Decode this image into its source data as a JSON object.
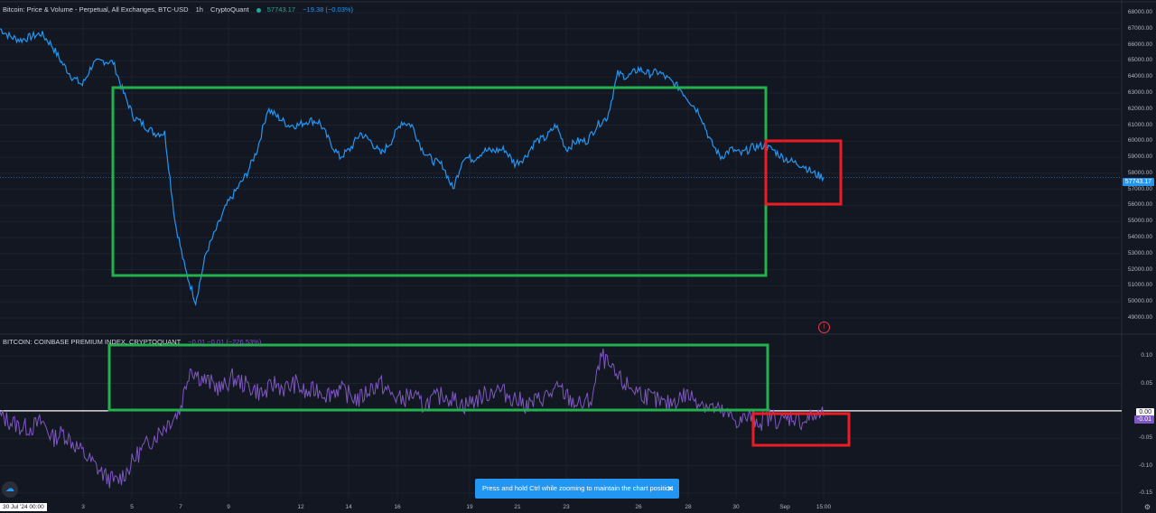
{
  "legend_top": {
    "name": "Bitcoin: Price & Volume - Perpetual, All Exchanges, BTC-USD",
    "interval": "1h",
    "source": "CryptoQuant",
    "price": "57743.17",
    "change": "−19.38 (−0.03%)"
  },
  "legend_bottom": {
    "name": "BITCOIN: COINBASE PREMIUM INDEX, CRYPTOQUANT",
    "values": "−0.01  −0.01 (−226.53%)"
  },
  "colors": {
    "background": "#131722",
    "price_line": "#2196f3",
    "premium_line": "#7e57c2",
    "highlight_green": "#22b14c",
    "highlight_red": "#ed1c24",
    "zero_line": "#ffffff"
  },
  "price_tag": "57743.17",
  "premium_tag_zero": "0.00",
  "premium_tag_current": "-0.01",
  "toast": {
    "message": "Press and hold Ctrl while zooming to maintain the chart position",
    "close_icon": "close-icon"
  },
  "date_chip": "30 Jul '24   00:00",
  "x_ticks": [
    "3",
    "5",
    "7",
    "9",
    "12",
    "14",
    "16",
    "19",
    "21",
    "23",
    "26",
    "28",
    "30",
    "Sep",
    "15:00"
  ],
  "chart_data": [
    {
      "type": "line",
      "title": "Bitcoin: Price & Volume - Perpetual, All Exchanges, BTC-USD",
      "series": [
        {
          "name": "Price",
          "values": [
            67000,
            66500,
            66300,
            66500,
            66700,
            66000,
            64900,
            64000,
            63500,
            64800,
            65000,
            64900,
            63000,
            61500,
            61000,
            60500,
            60500,
            55000,
            52000,
            50000,
            53000,
            54500,
            56000,
            57000,
            58000,
            59500,
            62000,
            61500,
            61000,
            61000,
            61300,
            61200,
            60000,
            59000,
            59500,
            60500,
            60000,
            59200,
            60000,
            61200,
            61000,
            59500,
            58800,
            58500,
            57000,
            59000,
            58900,
            59400,
            59400,
            59500,
            58600,
            59000,
            60000,
            60200,
            61000,
            59500,
            60000,
            60000,
            61000,
            61500,
            64200,
            64000,
            64500,
            64200,
            64300,
            63800,
            63300,
            62500,
            61700,
            60000,
            59000,
            59500,
            59200,
            59600,
            59700,
            59500,
            59000,
            58700,
            58500,
            58000,
            57743
          ]
        }
      ],
      "y_ticks": [
        "68000.00",
        "67000.00",
        "66000.00",
        "65000.00",
        "64000.00",
        "63000.00",
        "62000.00",
        "61000.00",
        "60000.00",
        "59000.00",
        "58000.00",
        "57000.00",
        "56000.00",
        "55000.00",
        "54000.00",
        "53000.00",
        "52000.00",
        "51000.00",
        "50000.00",
        "49000.00"
      ],
      "ylim": [
        49000,
        68000
      ]
    },
    {
      "type": "line",
      "title": "BITCOIN: COINBASE PREMIUM INDEX, CRYPTOQUANT",
      "series": [
        {
          "name": "Coinbase Premium Index",
          "values": [
            -0.01,
            -0.02,
            -0.03,
            -0.03,
            -0.02,
            -0.05,
            -0.04,
            -0.06,
            -0.08,
            -0.1,
            -0.12,
            -0.13,
            -0.11,
            -0.08,
            -0.06,
            -0.04,
            -0.02,
            0.0,
            0.08,
            0.06,
            0.05,
            0.04,
            0.06,
            0.05,
            0.04,
            0.03,
            0.05,
            0.04,
            0.05,
            0.03,
            0.04,
            0.03,
            0.04,
            0.03,
            0.02,
            0.04,
            0.05,
            0.03,
            0.02,
            0.03,
            0.01,
            0.02,
            0.03,
            0.02,
            0.01,
            0.02,
            0.03,
            0.04,
            0.03,
            0.02,
            0.01,
            0.02,
            0.03,
            0.04,
            0.02,
            0.01,
            0.02,
            0.1,
            0.07,
            0.05,
            0.04,
            0.03,
            0.02,
            0.01,
            0.02,
            0.03,
            0.02,
            0.01,
            0.0,
            -0.01,
            -0.02,
            -0.01,
            -0.02,
            -0.01,
            -0.02,
            -0.01,
            -0.02,
            -0.01,
            -0.01
          ]
        }
      ],
      "y_ticks": [
        "0.10",
        "0.05",
        "-0.05",
        "-0.10",
        "-0.15"
      ],
      "ylim": [
        -0.16,
        0.12
      ]
    }
  ]
}
